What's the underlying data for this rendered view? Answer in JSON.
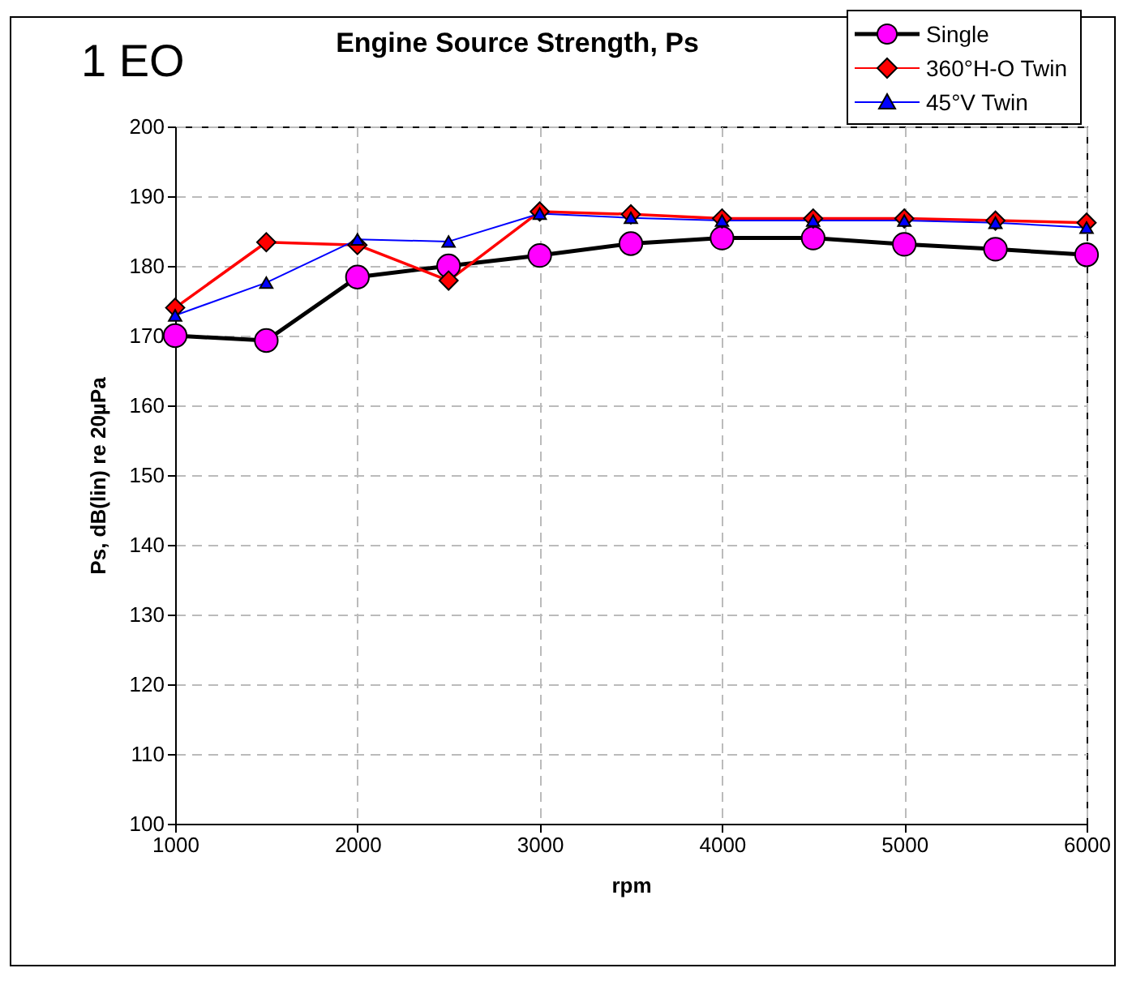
{
  "chart_data": {
    "type": "line",
    "title": "Engine Source Strength, Ps",
    "annotations": [
      "1 EO"
    ],
    "xlabel": "rpm",
    "ylabel": "Ps, dB(lin) re 20µPa",
    "x": [
      1000,
      1500,
      2000,
      2500,
      3000,
      3500,
      4000,
      4500,
      5000,
      5500,
      6000
    ],
    "series": [
      {
        "name": "Single",
        "color": "#ff00ff",
        "marker": "circle",
        "values": [
          170.0,
          169.3,
          178.4,
          180.0,
          181.5,
          183.2,
          184.0,
          184.0,
          183.1,
          182.4,
          181.6
        ]
      },
      {
        "name": "360°H-O Twin",
        "color": "#ff0000",
        "marker": "diamond",
        "values": [
          174.0,
          183.4,
          183.0,
          177.9,
          187.8,
          187.4,
          186.8,
          186.8,
          186.8,
          186.5,
          186.2
        ]
      },
      {
        "name": "45°V Twin",
        "color": "#0000ff",
        "marker": "triangle",
        "values": [
          172.9,
          177.6,
          183.8,
          183.5,
          187.5,
          186.9,
          186.5,
          186.5,
          186.5,
          186.2,
          185.5
        ]
      }
    ],
    "xlim": [
      1000,
      6000
    ],
    "xticks": [
      1000,
      2000,
      3000,
      4000,
      5000,
      6000
    ],
    "ylim": [
      100,
      200
    ],
    "yticks": [
      100,
      110,
      120,
      130,
      140,
      150,
      160,
      170,
      180,
      190,
      200
    ],
    "grid": true,
    "legend": "top right"
  }
}
